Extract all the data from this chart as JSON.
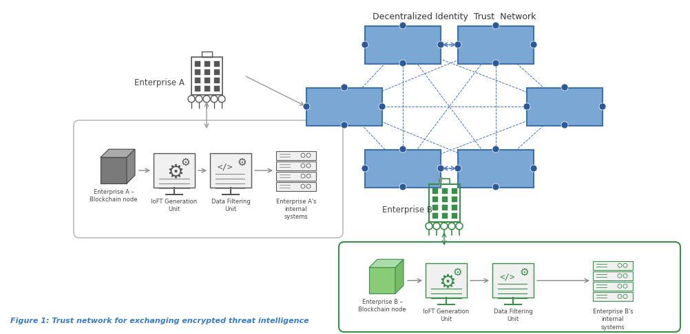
{
  "title": "Decentralized Identity  Trust  Network",
  "caption": "Figure 1: Trust network for exchanging encrypted threat intelligence",
  "bg_color": "#ffffff",
  "enterprise_a_label": "Enterprise A",
  "enterprise_b_label": "Enterprise B",
  "box_a_label": "Enterprise A –\nBlockchain node",
  "box_b_label": "Enterprise B –\nBlockchain node",
  "ioFT_a_label": "IoFT Generation\nUnit",
  "data_filter_a_label": "Data Filtering\nUnit",
  "internal_a_label": "Enterprise A's\ninternal\nsystems",
  "ioFT_b_label": "IoFT Generation\nUnit",
  "data_filter_b_label": "Data Filtering\nUnit",
  "internal_b_label": "Enterprise B's\ninternal\nsystems",
  "blue_fill": "#7ba7d4",
  "blue_edge": "#3d6fa8",
  "green_color": "#3a8c4a",
  "gray_color": "#888888",
  "arrow_gray": "#999999",
  "dashed_blue": "#4472c4",
  "caption_color": "#3a7abf",
  "node_dot_color": "#2d5a96"
}
